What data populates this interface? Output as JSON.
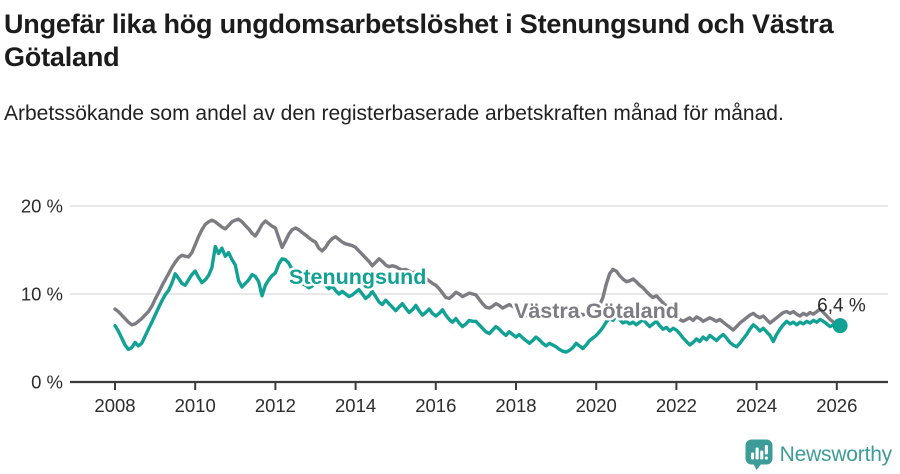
{
  "header": {
    "title": "Ungefär lika hög ungdomsarbetslöshet i Stenungsund och Västra Götaland",
    "subtitle": "Arbetssökande som andel av den registerbaserade arbetskraften månad för månad."
  },
  "chart_data": {
    "type": "line",
    "x_start_year": 2008,
    "x_step_months": 1,
    "x_tick_labels": [
      "2008",
      "2010",
      "2012",
      "2014",
      "2016",
      "2018",
      "2020",
      "2022",
      "2024",
      "2026"
    ],
    "y_tick_labels": [
      "0 %",
      "10 %",
      "20 %"
    ],
    "y_ticks_values": [
      0,
      10,
      20
    ],
    "ylim": [
      0,
      21
    ],
    "grid": "horizontal",
    "legend": "inline-labels",
    "colors": {
      "stenungsund": "#12A195",
      "vastra_gotaland": "#7D7C82",
      "gridline": "#d9d9d9",
      "axis": "#3c3c3c",
      "tick_text": "#2d2d2d",
      "annotation_text": "#2b2b2b"
    },
    "end_label": "6,4 %",
    "end_value": 6.4,
    "series": [
      {
        "name": "Västra Götaland",
        "color": "#7D7C82",
        "values": [
          8.3,
          8.0,
          7.6,
          7.2,
          6.8,
          6.5,
          6.6,
          6.9,
          7.2,
          7.6,
          8.0,
          8.6,
          9.4,
          10.1,
          10.9,
          11.6,
          12.3,
          13.0,
          13.6,
          14.1,
          14.4,
          14.3,
          14.2,
          14.7,
          15.6,
          16.5,
          17.3,
          17.9,
          18.2,
          18.4,
          18.2,
          17.9,
          17.6,
          17.4,
          17.8,
          18.2,
          18.4,
          18.5,
          18.2,
          17.8,
          17.4,
          16.9,
          16.6,
          17.2,
          17.9,
          18.3,
          18.0,
          17.7,
          17.5,
          16.4,
          15.3,
          16.0,
          16.8,
          17.3,
          17.5,
          17.3,
          17.0,
          16.7,
          16.4,
          16.1,
          15.9,
          15.2,
          14.9,
          15.3,
          15.9,
          16.3,
          16.5,
          16.2,
          15.9,
          15.7,
          15.6,
          15.5,
          15.3,
          14.9,
          14.5,
          14.1,
          13.7,
          13.2,
          13.6,
          14.0,
          13.7,
          13.3,
          13.1,
          13.2,
          13.1,
          12.9,
          12.7,
          12.8,
          12.6,
          12.4,
          12.5,
          12.3,
          12.0,
          11.8,
          11.5,
          11.2,
          11.0,
          10.6,
          10.1,
          9.6,
          9.5,
          9.8,
          10.2,
          10.0,
          9.7,
          9.9,
          10.1,
          10.0,
          9.9,
          9.4,
          8.9,
          8.5,
          8.4,
          8.6,
          8.9,
          8.7,
          8.4,
          8.6,
          8.8,
          8.6,
          8.4,
          8.2,
          7.9,
          7.6,
          7.4,
          7.6,
          7.9,
          7.7,
          7.4,
          7.3,
          7.5,
          7.4,
          7.3,
          7.5,
          7.7,
          7.5,
          7.3,
          7.6,
          8.0,
          7.8,
          7.6,
          7.8,
          8.1,
          8.3,
          8.4,
          8.7,
          9.6,
          11.1,
          12.3,
          12.8,
          12.6,
          12.1,
          11.7,
          11.4,
          11.5,
          11.7,
          11.4,
          11.0,
          10.7,
          10.3,
          9.9,
          9.6,
          9.8,
          9.4,
          9.0,
          8.6,
          8.2,
          7.8,
          7.4,
          7.1,
          6.9,
          7.1,
          7.3,
          7.0,
          7.4,
          7.2,
          6.9,
          7.1,
          7.3,
          7.1,
          6.9,
          7.1,
          6.8,
          6.5,
          6.2,
          5.9,
          6.3,
          6.7,
          7.0,
          7.3,
          7.6,
          7.8,
          7.5,
          7.3,
          7.5,
          7.1,
          6.7,
          7.0,
          7.3,
          7.6,
          7.9,
          8.0,
          7.8,
          8.0,
          7.7,
          7.5,
          7.8,
          7.6,
          7.9,
          7.7,
          8.0,
          8.3,
          7.9,
          7.5,
          7.1,
          6.8,
          6.7,
          6.6
        ]
      },
      {
        "name": "Stenungsund",
        "color": "#12A195",
        "values": [
          6.4,
          5.8,
          5.0,
          4.2,
          3.7,
          3.9,
          4.5,
          4.1,
          4.4,
          5.2,
          6.0,
          6.8,
          7.6,
          8.4,
          9.2,
          9.9,
          10.4,
          11.2,
          12.3,
          11.8,
          11.2,
          11.0,
          11.6,
          12.2,
          12.6,
          11.9,
          11.3,
          11.6,
          12.1,
          13.0,
          15.4,
          14.6,
          15.2,
          14.3,
          14.7,
          13.9,
          13.3,
          11.5,
          10.8,
          11.2,
          11.6,
          12.2,
          12.0,
          11.4,
          9.8,
          11.0,
          11.6,
          12.1,
          12.4,
          13.4,
          14.0,
          13.9,
          13.5,
          12.8,
          12.1,
          11.6,
          11.2,
          11.0,
          10.7,
          10.9,
          11.3,
          11.7,
          11.4,
          11.0,
          10.6,
          10.9,
          10.4,
          10.0,
          10.3,
          10.0,
          9.7,
          9.9,
          10.2,
          10.5,
          10.0,
          9.5,
          9.8,
          10.3,
          9.7,
          9.1,
          8.8,
          9.3,
          8.9,
          8.5,
          8.1,
          8.5,
          8.9,
          8.4,
          7.9,
          8.2,
          8.7,
          8.1,
          7.6,
          7.9,
          8.3,
          7.8,
          7.5,
          7.8,
          8.2,
          7.6,
          7.1,
          6.8,
          7.2,
          6.7,
          6.3,
          6.6,
          7.0,
          6.9,
          6.9,
          6.5,
          6.1,
          5.7,
          5.5,
          5.9,
          6.3,
          6.0,
          5.6,
          5.3,
          5.7,
          5.4,
          5.1,
          5.4,
          5.0,
          4.7,
          4.4,
          4.7,
          5.1,
          4.8,
          4.4,
          4.1,
          4.4,
          4.2,
          4.0,
          3.7,
          3.5,
          3.4,
          3.6,
          3.9,
          4.4,
          4.1,
          3.8,
          4.2,
          4.7,
          5.0,
          5.3,
          5.7,
          6.2,
          6.8,
          7.3,
          7.0,
          7.5,
          7.1,
          6.7,
          6.9,
          6.6,
          6.8,
          6.5,
          6.8,
          7.1,
          6.7,
          6.3,
          6.6,
          6.9,
          6.4,
          6.0,
          6.2,
          5.8,
          6.1,
          5.9,
          5.5,
          5.0,
          4.6,
          4.2,
          4.5,
          4.9,
          4.6,
          5.1,
          4.8,
          5.3,
          5.0,
          4.7,
          5.1,
          5.4,
          5.0,
          4.5,
          4.2,
          4.0,
          4.4,
          4.9,
          5.4,
          6.0,
          6.5,
          6.2,
          5.8,
          6.1,
          5.7,
          5.3,
          4.6,
          5.4,
          6.0,
          6.5,
          6.9,
          6.6,
          6.8,
          6.5,
          6.8,
          6.6,
          6.9,
          6.7,
          7.0,
          6.8,
          7.1,
          6.9,
          6.6,
          6.3,
          6.5,
          6.3,
          6.4
        ]
      }
    ]
  },
  "branding": {
    "logo_text": "Newsworthy",
    "logo_color": "#3d9c98",
    "logo_icon": "speech-bubble-bar-chart-icon"
  }
}
